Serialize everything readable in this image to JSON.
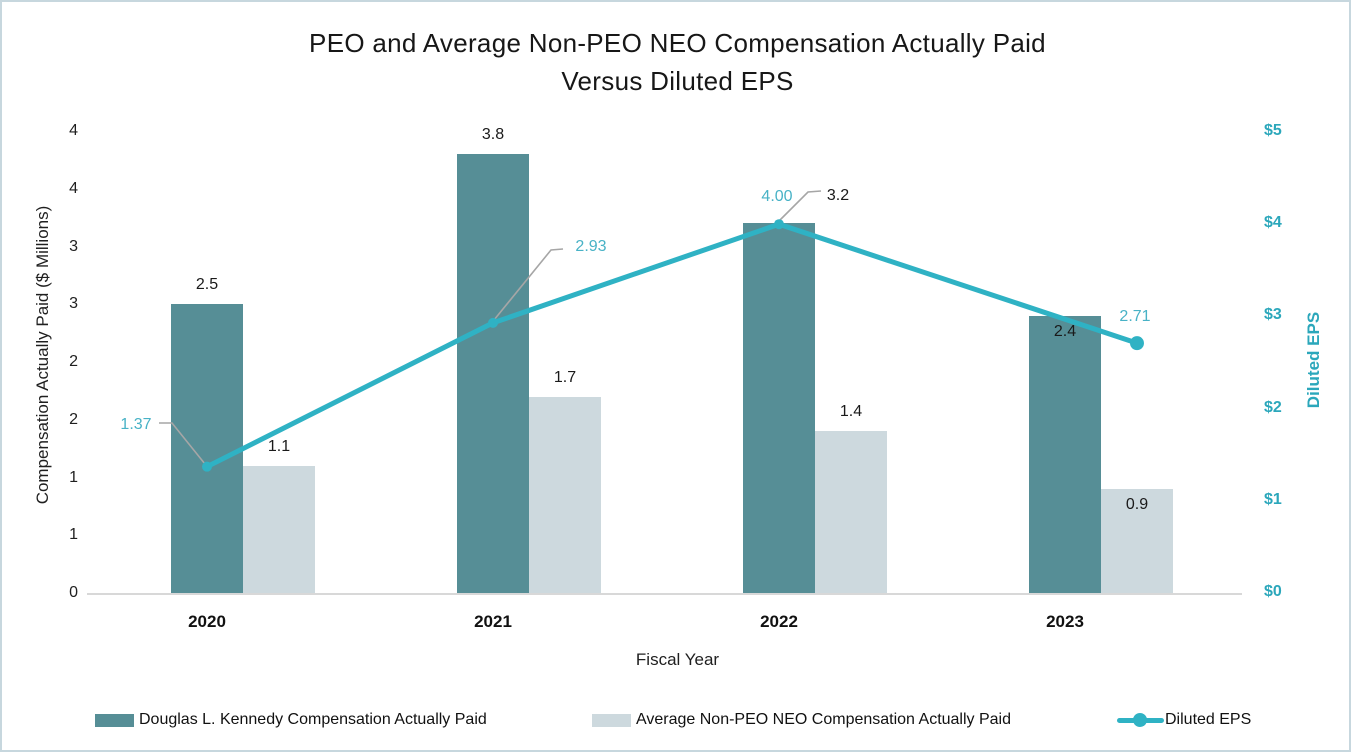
{
  "title": {
    "line1": "PEO and Average Non-PEO NEO Compensation Actually Paid",
    "line2": "Versus Diluted EPS"
  },
  "axes": {
    "left": {
      "title": "Compensation Actually Paid ($ Millions)",
      "tick_labels_top_to_bottom": [
        "4",
        "4",
        "3",
        "3",
        "2",
        "2",
        "1",
        "1",
        "0"
      ]
    },
    "right": {
      "title": "Diluted EPS",
      "tick_labels_top_to_bottom": [
        "$5",
        "$4",
        "$3",
        "$2",
        "$1",
        "$0"
      ]
    },
    "x": {
      "title": "Fiscal Year",
      "categories": [
        "2020",
        "2021",
        "2022",
        "2023"
      ]
    }
  },
  "legend": {
    "peo_label": "Douglas L. Kennedy Compensation Actually Paid",
    "neo_label": "Average Non-PEO NEO Compensation Actually Paid",
    "eps_label": "Diluted EPS"
  },
  "colors": {
    "peo_bar": "#568e96",
    "neo_bar": "#cdd9de",
    "eps_line": "#2fb2c4",
    "right_axis_text": "#2ba7bb",
    "eps_data_label": "#48b2c6",
    "leader_line": "#a6a6a6",
    "axis_line": "#d8d8d8",
    "canvas_border": "#c7d7de"
  },
  "chart_data": {
    "type": "combo-bar-line",
    "title": "PEO and Average Non-PEO NEO Compensation Actually Paid Versus Diluted EPS",
    "categories": [
      "2020",
      "2021",
      "2022",
      "2023"
    ],
    "series": [
      {
        "name": "Douglas L. Kennedy Compensation Actually Paid",
        "type": "bar",
        "axis": "left",
        "values": [
          2.5,
          3.8,
          3.2,
          2.4
        ],
        "labels": [
          "2.5",
          "3.8",
          "3.2",
          "2.4"
        ],
        "color": "#568e96"
      },
      {
        "name": "Average Non-PEO NEO Compensation Actually Paid",
        "type": "bar",
        "axis": "left",
        "values": [
          1.1,
          1.7,
          1.4,
          0.9
        ],
        "labels": [
          "1.1",
          "1.7",
          "1.4",
          "0.9"
        ],
        "color": "#cdd9de"
      },
      {
        "name": "Diluted EPS",
        "type": "line",
        "axis": "right",
        "values": [
          1.37,
          2.93,
          4.0,
          2.71
        ],
        "labels": [
          "1.37",
          "2.93",
          "4.00",
          "2.71"
        ],
        "color": "#2fb2c4"
      }
    ],
    "left_axis": {
      "label": "Compensation Actually Paid ($ Millions)",
      "min": 0,
      "max": 4,
      "tick_step": 0.5,
      "tick_format": "rounded integer"
    },
    "right_axis": {
      "label": "Diluted EPS",
      "min": 0,
      "max": 5,
      "tick_step": 1,
      "tick_format": "$N"
    },
    "xlabel": "Fiscal Year",
    "grid": false,
    "legend_position": "bottom"
  }
}
